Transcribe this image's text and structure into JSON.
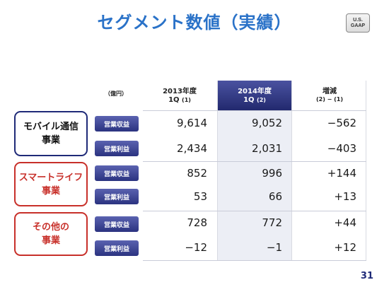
{
  "title": "セグメント数値（実績）",
  "badge": "U.S.\nGAAP",
  "unit": "（億円）",
  "columns": [
    {
      "line1": "2013年度",
      "line2": "1Q",
      "sub": "(1)"
    },
    {
      "line1": "2014年度",
      "line2": "1Q",
      "sub": "(2)"
    },
    {
      "line1": "増減",
      "line2": "",
      "sub": "(2) − (1)"
    }
  ],
  "segments": [
    {
      "name": "モバイル通信\n事業",
      "rows": [
        {
          "metric": "営業収益",
          "v1": "9,614",
          "v2": "9,052",
          "diff": "−562"
        },
        {
          "metric": "営業利益",
          "v1": "2,434",
          "v2": "2,031",
          "diff": "−403"
        }
      ]
    },
    {
      "name": "スマートライフ\n事業",
      "rows": [
        {
          "metric": "営業収益",
          "v1": "852",
          "v2": "996",
          "diff": "+144"
        },
        {
          "metric": "営業利益",
          "v1": "53",
          "v2": "66",
          "diff": "+13"
        }
      ]
    },
    {
      "name": "その他の\n事業",
      "rows": [
        {
          "metric": "営業収益",
          "v1": "728",
          "v2": "772",
          "diff": "+44"
        },
        {
          "metric": "営業利益",
          "v1": "−12",
          "v2": "−1",
          "diff": "+12"
        }
      ]
    }
  ],
  "page_number": "31",
  "colors": {
    "title": "#2a72c8",
    "navy": "#1f2a78",
    "red": "#c8302a",
    "header_highlight": "#2b3380"
  }
}
